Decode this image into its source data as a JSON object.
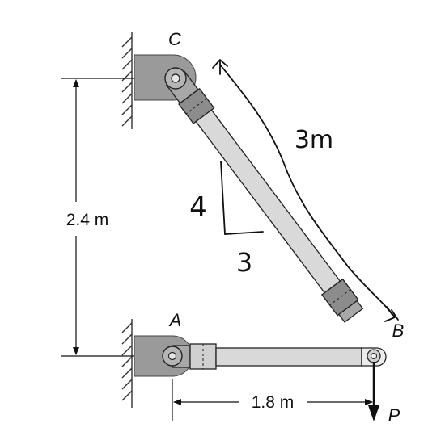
{
  "points": {
    "a": "A",
    "b": "B",
    "c": "C"
  },
  "dimensions": {
    "vertical": "2.4 m",
    "horizontal": "1.8 m"
  },
  "load": {
    "label": "P"
  },
  "handwritten": {
    "length": "3m",
    "rise": "4",
    "run": "3"
  },
  "colors": {
    "support": "#9a9a9a",
    "bar_fill": "#d9d9d9",
    "bar_edge": "#222222",
    "end_cap": "#8c8c8c",
    "hatch": "#333333",
    "ink": "#111111"
  }
}
